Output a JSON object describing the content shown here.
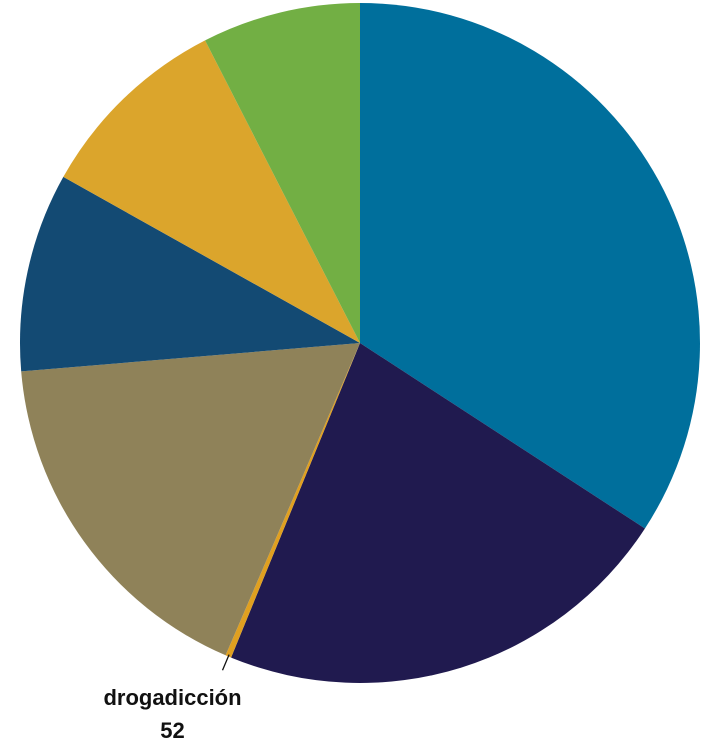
{
  "chart_data": {
    "type": "pie",
    "categories": [
      null,
      null,
      "drogadicción",
      null,
      null,
      null,
      null
    ],
    "values": [
      6400,
      4120,
      52,
      3220,
      1770,
      1750,
      1410
    ],
    "colors": [
      "#006f9c",
      "#201a4f",
      "#e0a020",
      "#8f8259",
      "#134a73",
      "#dba52c",
      "#72af44"
    ]
  }
}
